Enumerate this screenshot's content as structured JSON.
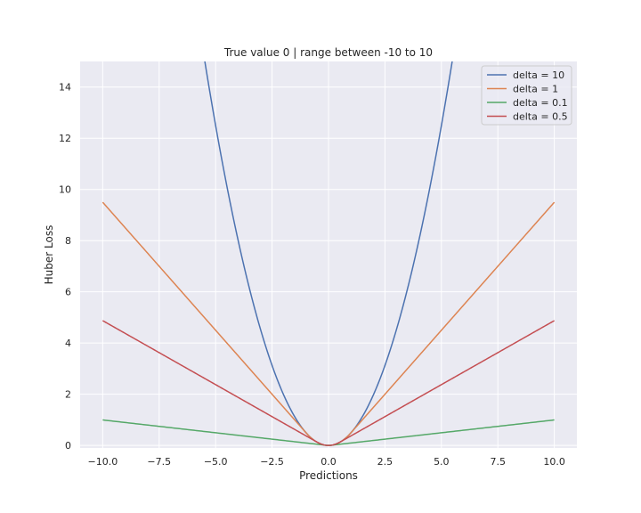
{
  "chart_data": {
    "type": "line",
    "title": "True value 0 | range between -10 to 10",
    "xlabel": "Predictions",
    "ylabel": "Huber Loss",
    "xlim": [
      -11,
      11
    ],
    "ylim": [
      -0.1,
      15
    ],
    "xticks": [
      -10.0,
      -7.5,
      -5.0,
      -2.5,
      0.0,
      2.5,
      5.0,
      7.5,
      10.0
    ],
    "xtick_labels": [
      "−10.0",
      "−7.5",
      "−5.0",
      "−2.5",
      "0.0",
      "2.5",
      "5.0",
      "7.5",
      "10.0"
    ],
    "yticks": [
      0,
      2,
      4,
      6,
      8,
      10,
      12,
      14
    ],
    "ytick_labels": [
      "0",
      "2",
      "4",
      "6",
      "8",
      "10",
      "12",
      "14"
    ],
    "grid": true,
    "legend_position": "top-right",
    "x_range": [
      -10,
      10
    ],
    "series": [
      {
        "name": "delta = 10",
        "delta": 10,
        "color": "#4c72b0"
      },
      {
        "name": "delta = 1",
        "delta": 1,
        "color": "#dd8452"
      },
      {
        "name": "delta = 0.1",
        "delta": 0.1,
        "color": "#55a868"
      },
      {
        "name": "delta = 0.5",
        "delta": 0.5,
        "color": "#c44e52"
      }
    ],
    "colors": {
      "plot_background": "#eaeaf2",
      "grid": "#ffffff",
      "text": "#262626"
    }
  }
}
